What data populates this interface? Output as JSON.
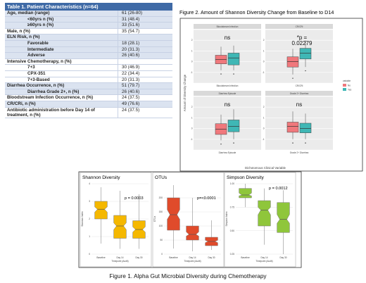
{
  "table": {
    "title": "Table 1. Patient Characteristics (n=64)",
    "rows": [
      {
        "label": "Age, median (range)",
        "value": "61 (26-80)",
        "bold": true,
        "bg": "b"
      },
      {
        "label": "<60yrs n (%)",
        "value": "31 (48.4)",
        "bold": true,
        "indent": true,
        "bg": "b"
      },
      {
        "label": "≥60yrs n (%)",
        "value": "33 (51.6)",
        "bold": true,
        "indent": true,
        "bg": "b"
      },
      {
        "label": "Male, n (%)",
        "value": "35 (54.7)",
        "bold": true,
        "bg": "w"
      },
      {
        "label": "ELN Risk, n (%)",
        "value": "",
        "bold": true,
        "bg": "b"
      },
      {
        "label": "Favorable",
        "value": "18 (28.1)",
        "bold": true,
        "indent": true,
        "bg": "b"
      },
      {
        "label": "Intermediate",
        "value": "20 (31.3)",
        "bold": true,
        "indent": true,
        "bg": "b"
      },
      {
        "label": "Adverse",
        "value": "26 (40.6)",
        "bold": true,
        "indent": true,
        "bg": "b"
      },
      {
        "label": "Intensive Chemotherapy, n (%)",
        "value": "",
        "bold": true,
        "bg": "w"
      },
      {
        "label": "7+3",
        "value": "30 (46.9)",
        "bold": true,
        "indent": true,
        "bg": "w"
      },
      {
        "label": "CPX-351",
        "value": "22 (34.4)",
        "bold": true,
        "indent": true,
        "bg": "w"
      },
      {
        "label": "7+3-Based",
        "value": "20 (31.3)",
        "bold": true,
        "indent": true,
        "bg": "w"
      },
      {
        "label": "Diarrhea Occurrence, n (%)",
        "value": "51 (79.7)",
        "bold": true,
        "bg": "b"
      },
      {
        "label": "Diarrhea Grade 2+, n (%)",
        "value": "26 (40.6)",
        "bold": true,
        "indent": true,
        "bg": "b"
      },
      {
        "label": "Bloodstream Infection Occurrence, n (%)",
        "value": "24 (37.5)",
        "bold": true,
        "bg": "w"
      },
      {
        "label": "CR/CRi, n (%)",
        "value": "49 (76.6)",
        "bold": true,
        "bg": "b"
      },
      {
        "label": "Antibiotic administration before Day 14 of treatment, n (%)",
        "value": "24 (37.5)",
        "bold": true,
        "bg": "w",
        "tall": true
      }
    ]
  },
  "figure2": {
    "title": "Figure 2. Amount of Shannon Diversity Change from Baseline to D14",
    "ylabel": "Amount of Diversity Change",
    "xlabel": "Dichotomous Clinical Variable",
    "legend_title": "variable",
    "legend": [
      {
        "name": "No",
        "color": "#f0787c"
      },
      {
        "name": "Yes",
        "color": "#3fb7b5"
      }
    ],
    "colors": {
      "no": "#f0787c",
      "yes": "#3fb7b5"
    },
    "panels": [
      {
        "strip": "Bloodstream Infection",
        "xlabel": "Bloodstream Infection",
        "annotation": "ns",
        "box_no": [
          -0.8,
          -0.2,
          0.2,
          0.6,
          1.4
        ],
        "box_yes": [
          -0.8,
          -0.3,
          0.35,
          0.8,
          1.5
        ]
      },
      {
        "strip": "CR/CRi",
        "xlabel": "CR/CRi",
        "annotation": "*p =\n0.02279",
        "box_no": [
          -1.2,
          -0.5,
          0.0,
          0.45,
          1.2
        ],
        "box_yes": [
          -0.5,
          0.25,
          0.8,
          1.25,
          2.0
        ]
      },
      {
        "strip": "Diarrhea Episode",
        "xlabel": "Diarrhea Episode",
        "annotation": "ns",
        "box_no": [
          -1.1,
          -0.55,
          -0.05,
          0.45,
          1.3
        ],
        "box_yes": [
          -1.0,
          -0.3,
          0.2,
          0.8,
          1.8
        ]
      },
      {
        "strip": "Grade 2+ Diarrhea",
        "xlabel": "Grade 2+ Diarrhea",
        "annotation": "ns",
        "box_no": [
          -1.0,
          -0.35,
          0.2,
          0.6,
          1.6
        ],
        "box_yes": [
          -1.0,
          -0.4,
          0.0,
          0.5,
          1.4
        ]
      }
    ]
  },
  "figure1": {
    "caption": "Figure 1. Alpha Gut Microbial Diversity during Chemotherapy",
    "xlabel": "Timepoint (Audit)",
    "categories": [
      "Baseline",
      "Day 14",
      "Day 30"
    ],
    "panels": [
      {
        "title": "Shannon Diversity",
        "ylabel": "Shannon Index",
        "pval": "p = 0.0003",
        "color": "#f5b800",
        "ylim": [
          0,
          4
        ],
        "yticks": [
          "0",
          "1",
          "2",
          "3",
          "4"
        ],
        "boxes": [
          [
            0.6,
            2.0,
            2.55,
            3.0,
            3.8
          ],
          [
            0.3,
            0.9,
            1.6,
            2.2,
            3.6
          ],
          [
            0.3,
            0.9,
            1.4,
            1.9,
            3.4
          ]
        ]
      },
      {
        "title": "OTUs",
        "ylabel": "OTUs",
        "pval": "p=<0.0001",
        "color": "#e04b2b",
        "ylim": [
          0,
          250
        ],
        "yticks": [
          "0",
          "50",
          "100",
          "150",
          "200"
        ],
        "boxes": [
          [
            20,
            85,
            140,
            200,
            245
          ],
          [
            10,
            50,
            70,
            100,
            200
          ],
          [
            15,
            30,
            45,
            60,
            120
          ]
        ]
      },
      {
        "title": "Simpson Diversity",
        "ylabel": "Simpson Index",
        "pval": "p = 0.0012",
        "color": "#8fc63b",
        "ylim": [
          0.25,
          1
        ],
        "yticks": [
          "0.25",
          "0.50",
          "0.75",
          "1.00"
        ],
        "boxes": [
          [
            0.75,
            0.85,
            0.88,
            0.95,
            1.0
          ],
          [
            0.35,
            0.55,
            0.72,
            0.82,
            0.95
          ],
          [
            0.25,
            0.48,
            0.62,
            0.8,
            0.93
          ]
        ]
      }
    ]
  }
}
